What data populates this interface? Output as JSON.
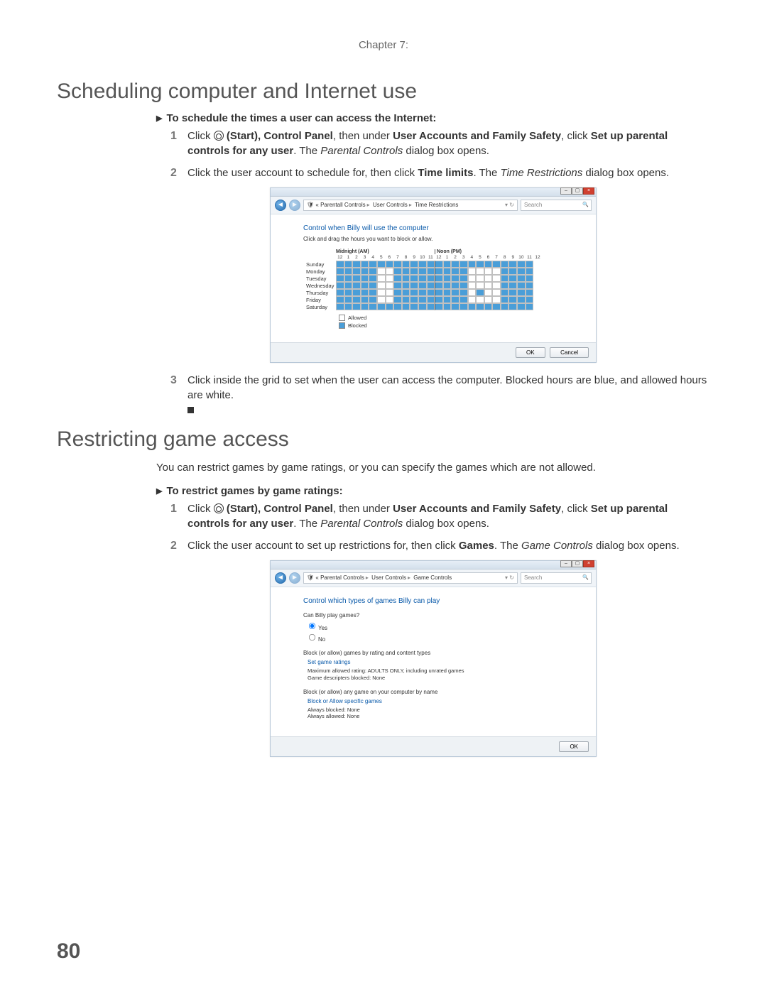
{
  "chapter_header": "Chapter 7:",
  "page_number": "80",
  "section1": {
    "title": "Scheduling computer and Internet use",
    "task_heading": "To schedule the times a user can access the Internet:",
    "step1_a": "Click ",
    "step1_b": " (Start), Control Panel",
    "step1_c": ", then under ",
    "step1_d": "User Accounts and Family Safety",
    "step1_e": ", click ",
    "step1_f": "Set up parental controls for any user",
    "step1_g": ". The ",
    "step1_h": "Parental Controls",
    "step1_i": " dialog box opens.",
    "step2_a": "Click the user account to schedule for, then click ",
    "step2_b": "Time limits",
    "step2_c": ". The ",
    "step2_d": "Time Restrictions",
    "step2_e": " dialog box opens.",
    "step3": "Click inside the grid to set when the user can access the computer. Blocked hours are blue, and allowed hours are white."
  },
  "section2": {
    "title": "Restricting game access",
    "intro": "You can restrict games by game ratings, or you can specify the games which are not allowed.",
    "task_heading": "To restrict games by game ratings:",
    "step1_a": "Click ",
    "step1_b": " (Start), Control Panel",
    "step1_c": ", then under ",
    "step1_d": "User Accounts and Family Safety",
    "step1_e": ", click ",
    "step1_f": "Set up parental controls for any user",
    "step1_g": ". The ",
    "step1_h": "Parental Controls",
    "step1_i": " dialog box opens.",
    "step2_a": "Click the user account to set up restrictions for, then click ",
    "step2_b": "Games",
    "step2_c": ". The ",
    "step2_d": "Game Controls",
    "step2_e": " dialog box opens."
  },
  "dialog1": {
    "breadcrumb": [
      "Parentall Controls",
      "User Controls",
      "Time Restrictions"
    ],
    "search_placeholder": "Search",
    "heading": "Control when Billy will use the computer",
    "sub": "Click and drag the hours you want to block or allow.",
    "col_am": "Midnight (AM)",
    "col_pm": "Noon (PM)",
    "hours": [
      "12",
      "1",
      "2",
      "3",
      "4",
      "5",
      "6",
      "7",
      "8",
      "9",
      "10",
      "11",
      "12",
      "1",
      "2",
      "3",
      "4",
      "5",
      "6",
      "7",
      "8",
      "9",
      "10",
      "11",
      "12"
    ],
    "days": [
      "Sunday",
      "Monday",
      "Tuesday",
      "Wednesday",
      "Thursday",
      "Friday",
      "Saturday"
    ],
    "blocked": {
      "Sunday": [
        0,
        1,
        2,
        3,
        4,
        5,
        6,
        7,
        8,
        9,
        10,
        11,
        12,
        13,
        14,
        15,
        16,
        17,
        18,
        19,
        20,
        21,
        22,
        23
      ],
      "Monday": [
        0,
        1,
        2,
        3,
        4,
        7,
        8,
        9,
        10,
        11,
        12,
        13,
        14,
        15,
        20,
        21,
        22,
        23
      ],
      "Tuesday": [
        0,
        1,
        2,
        3,
        4,
        7,
        8,
        9,
        10,
        11,
        12,
        13,
        14,
        15,
        20,
        21,
        22,
        23
      ],
      "Wednesday": [
        0,
        1,
        2,
        3,
        4,
        7,
        8,
        9,
        10,
        11,
        12,
        13,
        14,
        15,
        20,
        21,
        22,
        23
      ],
      "Thursday": [
        0,
        1,
        2,
        3,
        4,
        7,
        8,
        9,
        10,
        11,
        12,
        13,
        14,
        15,
        17,
        20,
        21,
        22,
        23
      ],
      "Friday": [
        0,
        1,
        2,
        3,
        4,
        7,
        8,
        9,
        10,
        11,
        12,
        13,
        14,
        15,
        20,
        21,
        22,
        23
      ],
      "Saturday": [
        0,
        1,
        2,
        3,
        4,
        5,
        6,
        7,
        8,
        9,
        10,
        11,
        12,
        13,
        14,
        15,
        16,
        17,
        18,
        19,
        20,
        21,
        22,
        23
      ]
    },
    "legend_allowed": "Allowed",
    "legend_blocked": "Blocked",
    "ok": "OK",
    "cancel": "Cancel"
  },
  "dialog2": {
    "breadcrumb": [
      "Parental Controls",
      "User Controls",
      "Game Controls"
    ],
    "search_placeholder": "Search",
    "heading": "Control which types of games Billy can play",
    "q1": "Can Billy play games?",
    "yes": "Yes",
    "no": "No",
    "sec1": "Block (or allow) games by rating and content types",
    "link1": "Set game ratings",
    "detail1a": "Maximum allowed rating:  ADULTS ONLY, including unrated games",
    "detail1b": "Game descripters blocked:  None",
    "sec2": "Block (or allow) any game on your computer by name",
    "link2": "Block or Allow specific games",
    "detail2a": "Always blocked:  None",
    "detail2b": "Always allowed:  None",
    "ok": "OK"
  },
  "colors": {
    "blocked_cell": "#4a9ed8",
    "dialog_heading": "#0a5aaa",
    "grid_border": "#c0c0c0"
  }
}
